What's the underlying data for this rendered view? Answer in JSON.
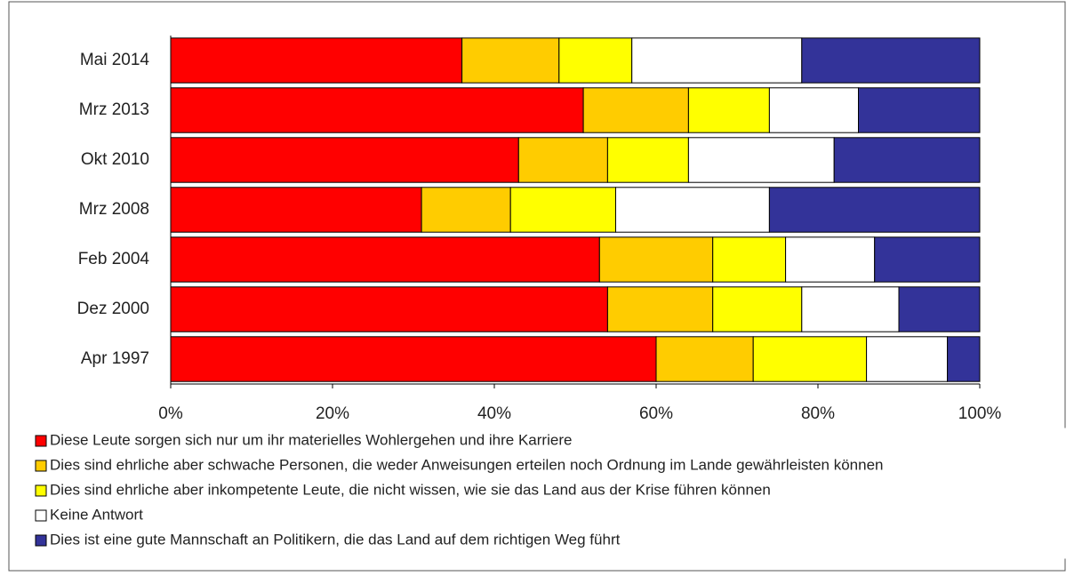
{
  "chart_data": {
    "type": "stacked-bar-horizontal",
    "categories": [
      "Mai 2014",
      "Mrz 2013",
      "Okt 2010",
      "Mrz 2008",
      "Feb 2004",
      "Dez 2000",
      "Apr 1997"
    ],
    "series": [
      {
        "name": "Diese Leute sorgen sich nur um ihr materielles Wohlergehen und ihre Karriere",
        "color": "#ff0000",
        "values": [
          36,
          51,
          43,
          31,
          53,
          54,
          60
        ]
      },
      {
        "name": "Dies sind ehrliche aber schwache Personen, die weder Anweisungen erteilen noch Ordnung im Lande gewährleisten können",
        "color": "#ffcc00",
        "values": [
          12,
          13,
          11,
          11,
          14,
          13,
          12
        ]
      },
      {
        "name": "Dies sind ehrliche aber inkompetente Leute, die nicht wissen, wie sie das Land aus der Krise führen können",
        "color": "#ffff00",
        "values": [
          9,
          10,
          10,
          13,
          9,
          11,
          14
        ]
      },
      {
        "name": "Keine Antwort",
        "color": "#ffffff",
        "values": [
          21,
          11,
          18,
          19,
          11,
          12,
          10
        ]
      },
      {
        "name": "Dies ist eine gute Mannschaft an Politikern, die das Land auf dem richtigen Weg führt",
        "color": "#333399",
        "values": [
          22,
          15,
          18,
          26,
          13,
          10,
          4
        ]
      }
    ],
    "xlim": [
      0,
      100
    ],
    "xticks": [
      {
        "value": 0,
        "label": "0%"
      },
      {
        "value": 20,
        "label": "20%"
      },
      {
        "value": 40,
        "label": "40%"
      },
      {
        "value": 60,
        "label": "60%"
      },
      {
        "value": 80,
        "label": "80%"
      },
      {
        "value": 100,
        "label": "100%"
      }
    ],
    "legend": "bottom"
  }
}
